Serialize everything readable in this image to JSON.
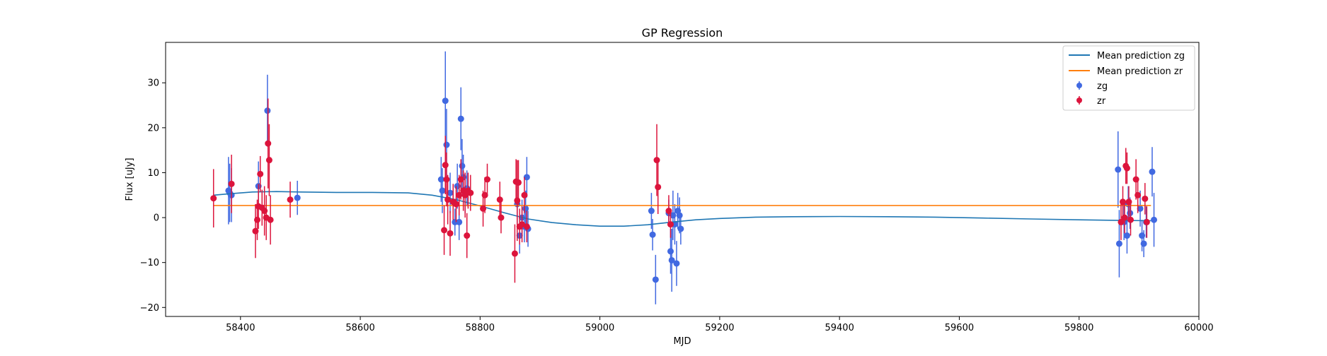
{
  "chart_data": {
    "type": "scatter",
    "title": "GP Regression",
    "xlabel": "MJD",
    "ylabel": "Flux [uJy]",
    "xlim": [
      58275,
      60000
    ],
    "ylim": [
      -22,
      39
    ],
    "xticks": [
      58400,
      58600,
      58800,
      59000,
      59200,
      59400,
      59600,
      59800,
      60000
    ],
    "yticks": [
      -20,
      -10,
      0,
      10,
      20,
      30
    ],
    "grid": false,
    "legend_position": "top-right",
    "legend": [
      "Mean prediction zg",
      "Mean prediction zr",
      "zg",
      "zr"
    ],
    "colors": {
      "zg_line": "#1f77b4",
      "zr_line": "#ff7f0e",
      "zg_points": "#4169e1",
      "zr_points": "#dc143c"
    },
    "series": [
      {
        "name": "Mean prediction zg",
        "kind": "line",
        "x": [
          58355,
          58380,
          58420,
          58460,
          58500,
          58560,
          58620,
          58680,
          58720,
          58760,
          58800,
          58840,
          58880,
          58920,
          58960,
          59000,
          59040,
          59080,
          59120,
          59160,
          59200,
          59260,
          59320,
          59400,
          59480,
          59560,
          59640,
          59720,
          59800,
          59860,
          59920
        ],
        "y": [
          5.0,
          5.3,
          5.7,
          5.8,
          5.7,
          5.6,
          5.6,
          5.5,
          5.0,
          4.0,
          2.6,
          1.1,
          -0.3,
          -1.1,
          -1.6,
          -1.9,
          -1.9,
          -1.6,
          -1.0,
          -0.5,
          -0.2,
          0.1,
          0.2,
          0.25,
          0.2,
          0.1,
          -0.1,
          -0.3,
          -0.5,
          -0.6,
          -0.7
        ]
      },
      {
        "name": "Mean prediction zr",
        "kind": "line",
        "x": [
          58355,
          59920
        ],
        "y": [
          2.7,
          2.7
        ]
      },
      {
        "name": "zg",
        "kind": "errorbar",
        "points": [
          {
            "x": 58380,
            "y": 6.0,
            "err": 7.5
          },
          {
            "x": 58382,
            "y": 5.5,
            "err": 6.5
          },
          {
            "x": 58385,
            "y": 5.0,
            "err": 6.0
          },
          {
            "x": 58430,
            "y": 7.0,
            "err": 5.5
          },
          {
            "x": 58445,
            "y": 23.8,
            "err": 8.0
          },
          {
            "x": 58495,
            "y": 4.4,
            "err": 3.8
          },
          {
            "x": 58735,
            "y": 8.5,
            "err": 5.0
          },
          {
            "x": 58737,
            "y": 6.0,
            "err": 5.0
          },
          {
            "x": 58742,
            "y": 26.0,
            "err": 11.0
          },
          {
            "x": 58744,
            "y": 16.2,
            "err": 8.0
          },
          {
            "x": 58750,
            "y": 5.5,
            "err": 4.5
          },
          {
            "x": 58755,
            "y": 3.5,
            "err": 4.0
          },
          {
            "x": 58758,
            "y": -1.0,
            "err": 3.0
          },
          {
            "x": 58762,
            "y": 7.0,
            "err": 5.0
          },
          {
            "x": 58765,
            "y": -1.0,
            "err": 4.0
          },
          {
            "x": 58768,
            "y": 22.0,
            "err": 7.0
          },
          {
            "x": 58770,
            "y": 11.5,
            "err": 6.0
          },
          {
            "x": 58772,
            "y": 9.0,
            "err": 5.0
          },
          {
            "x": 58775,
            "y": 5.5,
            "err": 4.5
          },
          {
            "x": 58778,
            "y": 6.5,
            "err": 4.0
          },
          {
            "x": 58862,
            "y": 3.0,
            "err": 4.5
          },
          {
            "x": 58866,
            "y": -4.0,
            "err": 4.0
          },
          {
            "x": 58870,
            "y": 0.0,
            "err": 4.0
          },
          {
            "x": 58874,
            "y": -2.0,
            "err": 3.5
          },
          {
            "x": 58876,
            "y": 2.0,
            "err": 4.0
          },
          {
            "x": 58878,
            "y": 9.0,
            "err": 4.5
          },
          {
            "x": 58880,
            "y": -2.5,
            "err": 4.0
          },
          {
            "x": 59086,
            "y": 1.5,
            "err": 4.0
          },
          {
            "x": 59088,
            "y": -3.8,
            "err": 3.5
          },
          {
            "x": 59093,
            "y": -13.8,
            "err": 5.5
          },
          {
            "x": 59115,
            "y": 1.0,
            "err": 3.0
          },
          {
            "x": 59118,
            "y": -7.5,
            "err": 5.0
          },
          {
            "x": 59120,
            "y": -9.5,
            "err": 7.0
          },
          {
            "x": 59122,
            "y": 0.5,
            "err": 5.5
          },
          {
            "x": 59125,
            "y": -1.5,
            "err": 4.5
          },
          {
            "x": 59128,
            "y": -10.2,
            "err": 5.0
          },
          {
            "x": 59130,
            "y": 1.5,
            "err": 4.0
          },
          {
            "x": 59133,
            "y": 0.5,
            "err": 4.0
          },
          {
            "x": 59135,
            "y": -2.5,
            "err": 3.5
          },
          {
            "x": 59865,
            "y": 10.7,
            "err": 8.5
          },
          {
            "x": 59867,
            "y": -5.8,
            "err": 7.5
          },
          {
            "x": 59875,
            "y": -1.0,
            "err": 4.0
          },
          {
            "x": 59880,
            "y": -4.0,
            "err": 4.0
          },
          {
            "x": 59882,
            "y": 3.0,
            "err": 4.0
          },
          {
            "x": 59885,
            "y": 1.0,
            "err": 3.5
          },
          {
            "x": 59902,
            "y": 2.0,
            "err": 4.0
          },
          {
            "x": 59905,
            "y": -4.0,
            "err": 3.5
          },
          {
            "x": 59908,
            "y": -5.8,
            "err": 3.0
          },
          {
            "x": 59912,
            "y": -1.0,
            "err": 3.5
          },
          {
            "x": 59922,
            "y": 10.2,
            "err": 5.5
          },
          {
            "x": 59925,
            "y": -0.5,
            "err": 6.0
          }
        ]
      },
      {
        "name": "zr",
        "kind": "errorbar",
        "points": [
          {
            "x": 58355,
            "y": 4.3,
            "err": 6.5
          },
          {
            "x": 58385,
            "y": 7.5,
            "err": 6.5
          },
          {
            "x": 58425,
            "y": -3.0,
            "err": 6.0
          },
          {
            "x": 58428,
            "y": -0.5,
            "err": 4.5
          },
          {
            "x": 58430,
            "y": 2.5,
            "err": 5.0
          },
          {
            "x": 58433,
            "y": 9.7,
            "err": 4.0
          },
          {
            "x": 58436,
            "y": 2.2,
            "err": 4.0
          },
          {
            "x": 58440,
            "y": 1.5,
            "err": 5.5
          },
          {
            "x": 58443,
            "y": 0.0,
            "err": 5.0
          },
          {
            "x": 58446,
            "y": 16.5,
            "err": 10.0
          },
          {
            "x": 58448,
            "y": 12.8,
            "err": 8.0
          },
          {
            "x": 58450,
            "y": -0.5,
            "err": 5.5
          },
          {
            "x": 58483,
            "y": 4.0,
            "err": 4.0
          },
          {
            "x": 58740,
            "y": -2.8,
            "err": 5.5
          },
          {
            "x": 58742,
            "y": 11.7,
            "err": 6.5
          },
          {
            "x": 58744,
            "y": 8.5,
            "err": 6.0
          },
          {
            "x": 58746,
            "y": 4.0,
            "err": 5.5
          },
          {
            "x": 58750,
            "y": -3.5,
            "err": 5.0
          },
          {
            "x": 58755,
            "y": 3.5,
            "err": 4.0
          },
          {
            "x": 58760,
            "y": 3.0,
            "err": 4.0
          },
          {
            "x": 58765,
            "y": 5.0,
            "err": 4.5
          },
          {
            "x": 58768,
            "y": 8.5,
            "err": 4.5
          },
          {
            "x": 58772,
            "y": 6.0,
            "err": 4.5
          },
          {
            "x": 58775,
            "y": 5.0,
            "err": 5.0
          },
          {
            "x": 58778,
            "y": -4.0,
            "err": 5.0
          },
          {
            "x": 58780,
            "y": 6.0,
            "err": 4.0
          },
          {
            "x": 58784,
            "y": 5.5,
            "err": 4.0
          },
          {
            "x": 58805,
            "y": 2.0,
            "err": 4.0
          },
          {
            "x": 58808,
            "y": 5.0,
            "err": 4.0
          },
          {
            "x": 58812,
            "y": 8.5,
            "err": 3.5
          },
          {
            "x": 58833,
            "y": 4.0,
            "err": 4.0
          },
          {
            "x": 58835,
            "y": 0.0,
            "err": 3.5
          },
          {
            "x": 58858,
            "y": -8.0,
            "err": 6.5
          },
          {
            "x": 58860,
            "y": 8.0,
            "err": 5.0
          },
          {
            "x": 58862,
            "y": 3.8,
            "err": 9.0
          },
          {
            "x": 58864,
            "y": 7.8,
            "err": 5.0
          },
          {
            "x": 58866,
            "y": -2.0,
            "err": 4.0
          },
          {
            "x": 58870,
            "y": -1.5,
            "err": 4.0
          },
          {
            "x": 58874,
            "y": 5.0,
            "err": 4.0
          },
          {
            "x": 58878,
            "y": -2.0,
            "err": 3.5
          },
          {
            "x": 59095,
            "y": 12.8,
            "err": 8.0
          },
          {
            "x": 59097,
            "y": 6.8,
            "err": 6.0
          },
          {
            "x": 59115,
            "y": 1.5,
            "err": 3.5
          },
          {
            "x": 59118,
            "y": -1.5,
            "err": 3.0
          },
          {
            "x": 59870,
            "y": -1.0,
            "err": 4.0
          },
          {
            "x": 59873,
            "y": 3.5,
            "err": 3.5
          },
          {
            "x": 59876,
            "y": 0.0,
            "err": 3.5
          },
          {
            "x": 59878,
            "y": 11.5,
            "err": 4.0
          },
          {
            "x": 59880,
            "y": 11.0,
            "err": 3.5
          },
          {
            "x": 59883,
            "y": 3.5,
            "err": 3.5
          },
          {
            "x": 59886,
            "y": -0.5,
            "err": 3.5
          },
          {
            "x": 59895,
            "y": 8.5,
            "err": 4.5
          },
          {
            "x": 59898,
            "y": 5.0,
            "err": 4.0
          },
          {
            "x": 59910,
            "y": 4.2,
            "err": 3.5
          },
          {
            "x": 59913,
            "y": -1.0,
            "err": 3.5
          }
        ]
      }
    ]
  }
}
